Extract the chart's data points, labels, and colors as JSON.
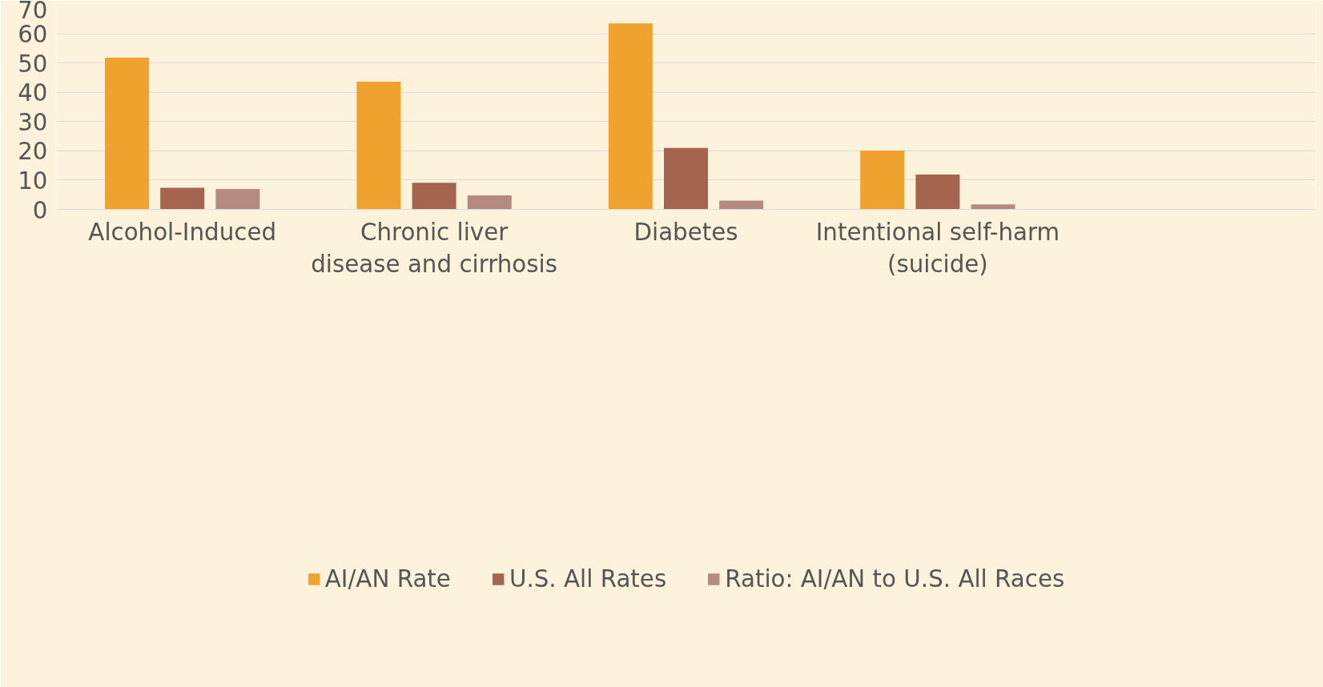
{
  "chart_data": {
    "type": "bar",
    "categories": [
      "Alcohol-Induced",
      "Chronic liver\ndisease and cirrhosis",
      "Diabetes",
      "Intentional self-harm\n(suicide)",
      null
    ],
    "series": [
      {
        "name": "AI/AN Rate",
        "color": "#f0a22e",
        "values": [
          51.8,
          43.6,
          63.5,
          20.1,
          null
        ]
      },
      {
        "name": "U.S. All Rates",
        "color": "#a5644e",
        "values": [
          7.4,
          9.1,
          21.0,
          11.9,
          null
        ]
      },
      {
        "name": "Ratio: AI/AN to U.S. All Races",
        "color": "#b58b80",
        "values": [
          7.0,
          4.8,
          3.0,
          1.7,
          null
        ]
      }
    ],
    "ylim": [
      0,
      70
    ],
    "yticks": [
      0,
      10,
      20,
      30,
      40,
      50,
      60,
      70
    ],
    "grid": "y",
    "legend": "bottom"
  }
}
